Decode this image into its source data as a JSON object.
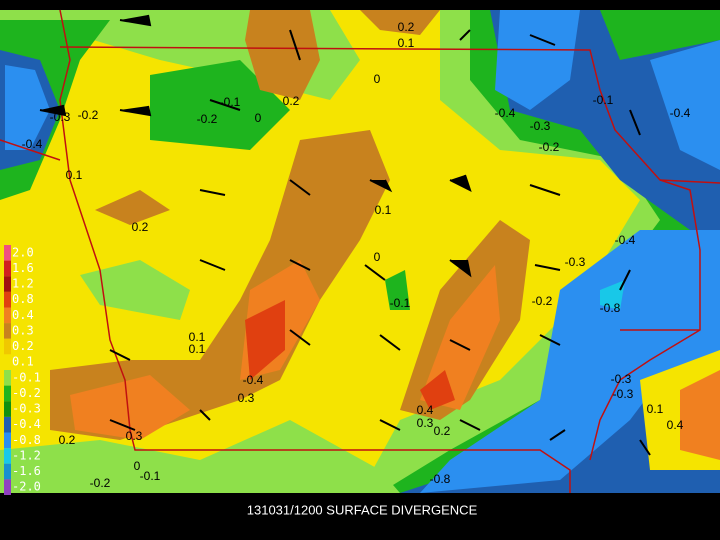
{
  "caption": "131031/1200 SURFACE DIVERGENCE",
  "legend_labels": [
    "2.0",
    "1.6",
    "1.2",
    "0.8",
    "0.4",
    "0.3",
    "0.2",
    "0.1",
    "-0.1",
    "-0.2",
    "-0.3",
    "-0.4",
    "-0.8",
    "-1.2",
    "-1.6",
    "-2.0"
  ],
  "contour_labels": [
    "0.2",
    "0.1",
    "0",
    "-0.1",
    "0.2",
    "-0.2",
    "0",
    "-0.3",
    "-0.2",
    "-0.4",
    "0.1",
    "-0.4",
    "-0.3",
    "-0.2",
    "-0.1",
    "-0.4",
    "0.1",
    "0.2",
    "-0.4",
    "0",
    "-0.3",
    "-0.1",
    "-0.2",
    "-0.8",
    "0.1",
    "0.1",
    "-0.4",
    "0.3",
    "-0.3",
    "-0.3",
    "0.1",
    "0.4",
    "0.3",
    "0.2",
    "0.4",
    "0.3",
    "0.2",
    "0",
    "-0.1",
    "-0.2",
    "-0.8"
  ]
}
